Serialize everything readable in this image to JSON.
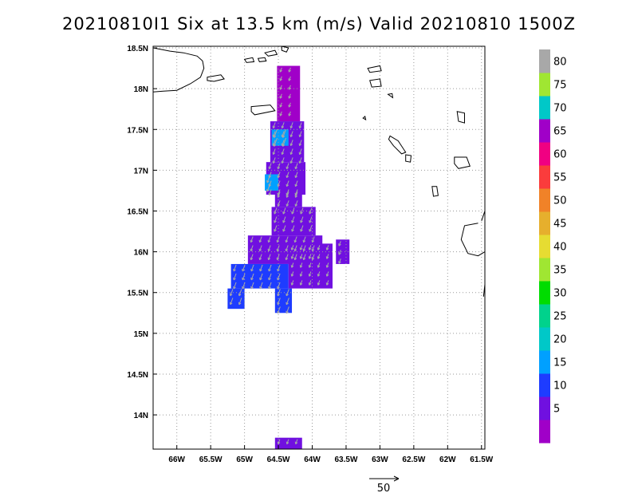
{
  "title": "20210810I1 Six at 13.5 km (m/s) Valid 20210810 1500Z",
  "map": {
    "lon_range": [
      -66.35,
      -61.45
    ],
    "lat_range": [
      13.58,
      18.52
    ],
    "lon_ticks": [
      {
        "value": -66.0,
        "label": "66W"
      },
      {
        "value": -65.5,
        "label": "65.5W"
      },
      {
        "value": -65.0,
        "label": "65W"
      },
      {
        "value": -64.5,
        "label": "64.5W"
      },
      {
        "value": -64.0,
        "label": "64W"
      },
      {
        "value": -63.5,
        "label": "63.5W"
      },
      {
        "value": -63.0,
        "label": "63W"
      },
      {
        "value": -62.5,
        "label": "62.5W"
      },
      {
        "value": -62.0,
        "label": "62W"
      },
      {
        "value": -61.5,
        "label": "61.5W"
      }
    ],
    "lat_ticks": [
      {
        "value": 14.0,
        "label": "14N"
      },
      {
        "value": 14.5,
        "label": "14.5N"
      },
      {
        "value": 15.0,
        "label": "15N"
      },
      {
        "value": 15.5,
        "label": "15.5N"
      },
      {
        "value": 16.0,
        "label": "16N"
      },
      {
        "value": 16.5,
        "label": "16.5N"
      },
      {
        "value": 17.0,
        "label": "17N"
      },
      {
        "value": 17.5,
        "label": "17.5N"
      },
      {
        "value": 18.0,
        "label": "18N"
      },
      {
        "value": 18.5,
        "label": "18.5N"
      }
    ],
    "grid": true,
    "coastline_color": "#000000",
    "vector_color": "#a8a8a8",
    "wind_direction_deg_toward": 200
  },
  "wind_field": [
    {
      "lat_range": [
        17.6,
        18.28
      ],
      "lon_range": [
        -64.52,
        -64.18
      ],
      "speed": 4
    },
    {
      "lat_range": [
        17.1,
        17.6
      ],
      "lon_range": [
        -64.62,
        -64.12
      ],
      "speed": 8
    },
    {
      "lat_range": [
        16.7,
        17.1
      ],
      "lon_range": [
        -64.68,
        -64.1
      ],
      "speed": 8
    },
    {
      "lat_range": [
        16.55,
        16.75
      ],
      "lon_range": [
        -64.55,
        -64.15
      ],
      "speed": 8
    },
    {
      "lat_range": [
        16.2,
        16.55
      ],
      "lon_range": [
        -64.6,
        -63.95
      ],
      "speed": 9
    },
    {
      "lat_range": [
        15.85,
        16.2
      ],
      "lon_range": [
        -64.95,
        -63.85
      ],
      "speed": 8
    },
    {
      "lat_range": [
        15.55,
        15.85
      ],
      "lon_range": [
        -65.2,
        -64.35
      ],
      "speed": 10
    },
    {
      "lat_range": [
        15.55,
        16.1
      ],
      "lon_range": [
        -64.35,
        -63.7
      ],
      "speed": 5
    },
    {
      "lat_range": [
        15.3,
        15.55
      ],
      "lon_range": [
        -65.25,
        -65.0
      ],
      "speed": 11
    },
    {
      "lat_range": [
        15.25,
        15.55
      ],
      "lon_range": [
        -64.55,
        -64.3
      ],
      "speed": 11
    },
    {
      "lat_range": [
        15.85,
        16.15
      ],
      "lon_range": [
        -63.65,
        -63.45
      ],
      "speed": 5
    },
    {
      "lat_range": [
        13.58,
        13.72
      ],
      "lon_range": [
        -64.55,
        -64.15
      ],
      "speed": 5
    },
    {
      "lat_range": [
        17.3,
        17.5
      ],
      "lon_range": [
        -64.6,
        -64.35
      ],
      "speed": 16
    },
    {
      "lat_range": [
        16.75,
        16.95
      ],
      "lon_range": [
        -64.7,
        -64.5
      ],
      "speed": 17
    }
  ],
  "coastlines": [
    {
      "name": "puerto-rico-east",
      "lonlat": [
        [
          -66.35,
          18.5
        ],
        [
          -66.1,
          18.46
        ],
        [
          -65.9,
          18.44
        ],
        [
          -65.7,
          18.4
        ],
        [
          -65.62,
          18.34
        ],
        [
          -65.6,
          18.25
        ],
        [
          -65.65,
          18.14
        ],
        [
          -65.8,
          18.06
        ],
        [
          -66.0,
          17.98
        ],
        [
          -66.2,
          17.97
        ],
        [
          -66.35,
          17.96
        ]
      ]
    },
    {
      "name": "vieques",
      "lonlat": [
        [
          -65.55,
          18.14
        ],
        [
          -65.35,
          18.17
        ],
        [
          -65.3,
          18.12
        ],
        [
          -65.45,
          18.09
        ],
        [
          -65.55,
          18.1
        ]
      ],
      "closed": true
    },
    {
      "name": "st-thomas",
      "lonlat": [
        [
          -65.0,
          18.36
        ],
        [
          -64.88,
          18.38
        ],
        [
          -64.86,
          18.33
        ],
        [
          -64.97,
          18.32
        ]
      ],
      "closed": true
    },
    {
      "name": "st-john",
      "lonlat": [
        [
          -64.8,
          18.37
        ],
        [
          -64.7,
          18.38
        ],
        [
          -64.68,
          18.34
        ],
        [
          -64.78,
          18.33
        ]
      ],
      "closed": true
    },
    {
      "name": "tortola",
      "lonlat": [
        [
          -64.7,
          18.44
        ],
        [
          -64.55,
          18.47
        ],
        [
          -64.52,
          18.42
        ],
        [
          -64.65,
          18.4
        ]
      ],
      "closed": true
    },
    {
      "name": "virgin-gorda",
      "lonlat": [
        [
          -64.45,
          18.52
        ],
        [
          -64.35,
          18.5
        ],
        [
          -64.38,
          18.45
        ],
        [
          -64.45,
          18.47
        ]
      ],
      "closed": true
    },
    {
      "name": "st-croix",
      "lonlat": [
        [
          -64.9,
          17.78
        ],
        [
          -64.62,
          17.8
        ],
        [
          -64.55,
          17.73
        ],
        0,
        [
          -64.85,
          17.68
        ],
        [
          -64.9,
          17.72
        ]
      ],
      "closed": true
    },
    {
      "name": "anguilla",
      "lonlat": [
        [
          -63.18,
          18.25
        ],
        [
          -63.0,
          18.28
        ],
        [
          -62.98,
          18.22
        ],
        [
          -63.15,
          18.2
        ]
      ],
      "closed": true
    },
    {
      "name": "st-martin",
      "lonlat": [
        [
          -63.15,
          18.1
        ],
        [
          -63.0,
          18.12
        ],
        [
          -62.98,
          18.03
        ],
        [
          -63.12,
          18.02
        ]
      ],
      "closed": true
    },
    {
      "name": "st-barts",
      "lonlat": [
        [
          -62.88,
          17.93
        ],
        [
          -62.82,
          17.94
        ],
        [
          -62.81,
          17.89
        ]
      ],
      "closed": true
    },
    {
      "name": "saba",
      "lonlat": [
        [
          -63.25,
          17.64
        ],
        [
          -63.22,
          17.66
        ],
        [
          -63.21,
          17.62
        ]
      ],
      "closed": true
    },
    {
      "name": "st-kitts",
      "lonlat": [
        [
          -62.85,
          17.42
        ],
        [
          -62.73,
          17.36
        ],
        [
          -62.62,
          17.22
        ],
        [
          -62.68,
          17.2
        ],
        [
          -62.8,
          17.3
        ],
        [
          -62.87,
          17.38
        ]
      ],
      "closed": true
    },
    {
      "name": "nevis",
      "lonlat": [
        [
          -62.62,
          17.19
        ],
        [
          -62.54,
          17.18
        ],
        [
          -62.55,
          17.1
        ],
        [
          -62.62,
          17.11
        ]
      ],
      "closed": true
    },
    {
      "name": "montserrat",
      "lonlat": [
        [
          -62.23,
          16.8
        ],
        [
          -62.16,
          16.8
        ],
        [
          -62.14,
          16.69
        ],
        [
          -62.21,
          16.68
        ]
      ],
      "closed": true
    },
    {
      "name": "antigua",
      "lonlat": [
        [
          -61.9,
          17.16
        ],
        [
          -61.72,
          17.16
        ],
        [
          -61.67,
          17.05
        ],
        [
          -61.84,
          17.02
        ],
        [
          -61.9,
          17.08
        ]
      ],
      "closed": true
    },
    {
      "name": "barbuda",
      "lonlat": [
        [
          -61.86,
          17.72
        ],
        [
          -61.75,
          17.7
        ],
        [
          -61.75,
          17.58
        ],
        [
          -61.84,
          17.6
        ]
      ],
      "closed": true
    },
    {
      "name": "guadeloupe-bt",
      "lonlat": [
        [
          -61.55,
          16.35
        ],
        [
          -61.75,
          16.32
        ],
        [
          -61.8,
          16.15
        ],
        0,
        [
          -61.7,
          15.98
        ],
        [
          -61.55,
          15.95
        ],
        [
          -61.45,
          16.0
        ]
      ]
    },
    {
      "name": "guadeloupe-gt",
      "lonlat": [
        [
          -61.45,
          16.5
        ],
        [
          -61.5,
          16.38
        ]
      ]
    },
    {
      "name": "dominica",
      "lonlat": [
        [
          -61.45,
          15.6
        ],
        [
          -61.47,
          15.45
        ]
      ]
    }
  ],
  "colorbar": {
    "levels": [
      {
        "label": "",
        "color": "#a000c8"
      },
      {
        "label": "5",
        "color": "#7010e0"
      },
      {
        "label": "10",
        "color": "#1e3cff"
      },
      {
        "label": "15",
        "color": "#00a0ff"
      },
      {
        "label": "20",
        "color": "#00c8c8"
      },
      {
        "label": "25",
        "color": "#00d28c"
      },
      {
        "label": "30",
        "color": "#00dc00"
      },
      {
        "label": "35",
        "color": "#a0e632"
      },
      {
        "label": "40",
        "color": "#e6dc32"
      },
      {
        "label": "45",
        "color": "#e6af2d"
      },
      {
        "label": "50",
        "color": "#f08228"
      },
      {
        "label": "55",
        "color": "#fa3c3c"
      },
      {
        "label": "60",
        "color": "#f00082"
      },
      {
        "label": "65",
        "color": "#a000c8"
      },
      {
        "label": "70",
        "color": "#00c8c8"
      },
      {
        "label": "75",
        "color": "#a0e632"
      },
      {
        "label": "80",
        "color": "#a8a8a8"
      }
    ]
  },
  "vector_key": {
    "label": "50"
  }
}
